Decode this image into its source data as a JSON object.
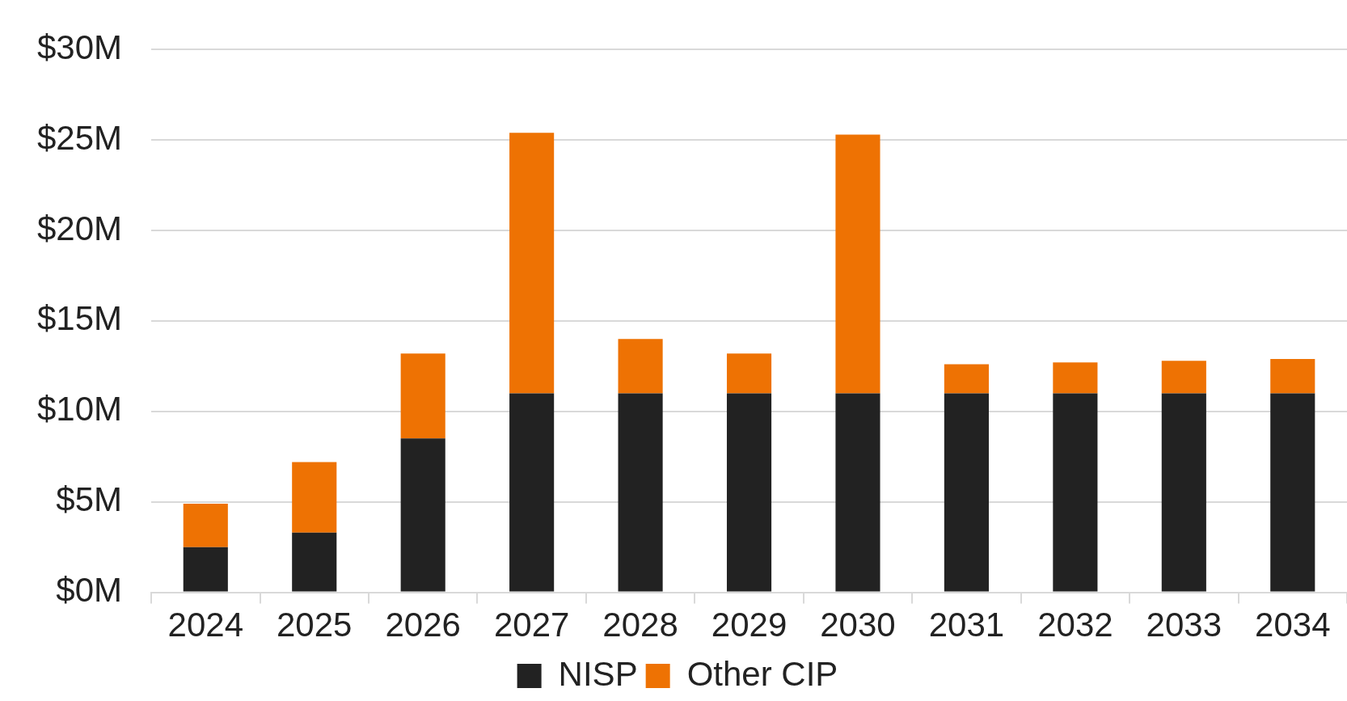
{
  "chart_data": {
    "type": "bar",
    "stacked": true,
    "categories": [
      "2024",
      "2025",
      "2026",
      "2027",
      "2028",
      "2029",
      "2030",
      "2031",
      "2032",
      "2033",
      "2034"
    ],
    "series": [
      {
        "name": "NISP",
        "color": "#222222",
        "values": [
          2.5,
          3.3,
          8.5,
          11.0,
          11.0,
          11.0,
          11.0,
          11.0,
          11.0,
          11.0,
          11.0
        ]
      },
      {
        "name": "Other CIP",
        "color": "#ee7203",
        "values": [
          2.4,
          3.9,
          4.7,
          14.4,
          3.0,
          2.2,
          14.3,
          1.6,
          1.7,
          1.8,
          1.9
        ]
      }
    ],
    "ylim": [
      0,
      30
    ],
    "yticks": [
      {
        "value": 0,
        "label": "$0M"
      },
      {
        "value": 5,
        "label": "$5M"
      },
      {
        "value": 10,
        "label": "$10M"
      },
      {
        "value": 15,
        "label": "$15M"
      },
      {
        "value": 20,
        "label": "$20M"
      },
      {
        "value": 25,
        "label": "$25M"
      },
      {
        "value": 30,
        "label": "$30M"
      }
    ],
    "grid": "y",
    "legend": "bottom"
  }
}
